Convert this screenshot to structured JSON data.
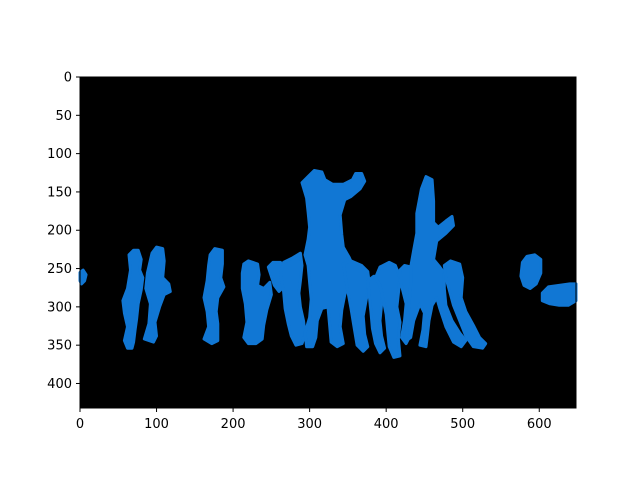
{
  "chart_data": {
    "type": "heatmap",
    "title": "",
    "xlabel": "",
    "ylabel": "",
    "xlim": [
      0,
      648
    ],
    "ylim": [
      432,
      0
    ],
    "y_axis_inverted": true,
    "xticks": [
      0,
      100,
      200,
      300,
      400,
      500,
      600
    ],
    "yticks": [
      0,
      50,
      100,
      150,
      200,
      250,
      300,
      350,
      400
    ],
    "grid": false,
    "legend": "none",
    "colors": {
      "background": "#000000",
      "mask": "#1177d4"
    },
    "mask_regions": [
      {
        "name": "edge-left",
        "points": [
          [
            0,
            255
          ],
          [
            4,
            252
          ],
          [
            8,
            258
          ],
          [
            6,
            266
          ],
          [
            2,
            270
          ],
          [
            0,
            266
          ]
        ]
      },
      {
        "name": "dancer-1",
        "points": [
          [
            64,
            232
          ],
          [
            70,
            226
          ],
          [
            76,
            226
          ],
          [
            80,
            238
          ],
          [
            78,
            252
          ],
          [
            82,
            262
          ],
          [
            80,
            278
          ],
          [
            76,
            296
          ],
          [
            74,
            316
          ],
          [
            72,
            330
          ],
          [
            70,
            346
          ],
          [
            68,
            354
          ],
          [
            62,
            354
          ],
          [
            58,
            344
          ],
          [
            62,
            326
          ],
          [
            58,
            308
          ],
          [
            56,
            292
          ],
          [
            62,
            276
          ],
          [
            66,
            252
          ]
        ]
      },
      {
        "name": "dancer-2",
        "points": [
          [
            94,
            230
          ],
          [
            100,
            222
          ],
          [
            108,
            224
          ],
          [
            110,
            240
          ],
          [
            108,
            262
          ],
          [
            116,
            270
          ],
          [
            118,
            280
          ],
          [
            110,
            284
          ],
          [
            104,
            300
          ],
          [
            98,
            320
          ],
          [
            100,
            338
          ],
          [
            96,
            346
          ],
          [
            84,
            342
          ],
          [
            90,
            322
          ],
          [
            92,
            296
          ],
          [
            86,
            276
          ],
          [
            88,
            256
          ]
        ]
      },
      {
        "name": "dancer-3",
        "points": [
          [
            170,
            232
          ],
          [
            176,
            224
          ],
          [
            186,
            226
          ],
          [
            186,
            244
          ],
          [
            184,
            262
          ],
          [
            188,
            274
          ],
          [
            180,
            288
          ],
          [
            178,
            306
          ],
          [
            180,
            322
          ],
          [
            180,
            344
          ],
          [
            172,
            348
          ],
          [
            162,
            342
          ],
          [
            168,
            326
          ],
          [
            166,
            306
          ],
          [
            162,
            288
          ],
          [
            166,
            266
          ],
          [
            168,
            246
          ]
        ]
      },
      {
        "name": "dancer-4",
        "points": [
          [
            214,
            244
          ],
          [
            220,
            240
          ],
          [
            232,
            244
          ],
          [
            234,
            258
          ],
          [
            232,
            272
          ],
          [
            240,
            276
          ],
          [
            248,
            268
          ],
          [
            250,
            284
          ],
          [
            244,
            304
          ],
          [
            240,
            324
          ],
          [
            238,
            342
          ],
          [
            230,
            348
          ],
          [
            220,
            348
          ],
          [
            214,
            340
          ],
          [
            218,
            320
          ],
          [
            216,
            296
          ],
          [
            212,
            276
          ],
          [
            212,
            256
          ]
        ]
      },
      {
        "name": "dancer-5",
        "points": [
          [
            246,
            248
          ],
          [
            252,
            242
          ],
          [
            262,
            242
          ],
          [
            266,
            256
          ],
          [
            268,
            272
          ],
          [
            260,
            280
          ],
          [
            254,
            272
          ]
        ]
      },
      {
        "name": "dancer-6",
        "points": [
          [
            266,
            242
          ],
          [
            278,
            236
          ],
          [
            288,
            230
          ],
          [
            290,
            246
          ],
          [
            288,
            266
          ],
          [
            286,
            282
          ],
          [
            288,
            300
          ],
          [
            292,
            318
          ],
          [
            294,
            336
          ],
          [
            290,
            348
          ],
          [
            282,
            350
          ],
          [
            276,
            338
          ],
          [
            272,
            322
          ],
          [
            268,
            302
          ],
          [
            266,
            280
          ],
          [
            262,
            258
          ]
        ]
      },
      {
        "name": "dancer-7",
        "points": [
          [
            290,
            138
          ],
          [
            298,
            130
          ],
          [
            306,
            122
          ],
          [
            316,
            124
          ],
          [
            320,
            134
          ],
          [
            330,
            140
          ],
          [
            344,
            140
          ],
          [
            356,
            134
          ],
          [
            360,
            126
          ],
          [
            368,
            126
          ],
          [
            372,
            136
          ],
          [
            366,
            146
          ],
          [
            354,
            156
          ],
          [
            346,
            160
          ],
          [
            340,
            180
          ],
          [
            342,
            206
          ],
          [
            344,
            222
          ],
          [
            352,
            236
          ],
          [
            358,
            250
          ],
          [
            352,
            266
          ],
          [
            346,
            284
          ],
          [
            342,
            304
          ],
          [
            340,
            326
          ],
          [
            344,
            348
          ],
          [
            336,
            352
          ],
          [
            328,
            346
          ],
          [
            326,
            322
          ],
          [
            324,
            300
          ],
          [
            316,
            302
          ],
          [
            310,
            318
          ],
          [
            308,
            340
          ],
          [
            304,
            352
          ],
          [
            296,
            352
          ],
          [
            294,
            334
          ],
          [
            300,
            314
          ],
          [
            302,
            290
          ],
          [
            300,
            268
          ],
          [
            298,
            246
          ],
          [
            294,
            232
          ],
          [
            298,
            212
          ],
          [
            300,
            196
          ],
          [
            298,
            176
          ],
          [
            296,
            158
          ]
        ]
      },
      {
        "name": "dancer-8",
        "points": [
          [
            344,
            244
          ],
          [
            354,
            240
          ],
          [
            368,
            246
          ],
          [
            376,
            254
          ],
          [
            378,
            270
          ],
          [
            374,
            290
          ],
          [
            370,
            312
          ],
          [
            372,
            336
          ],
          [
            376,
            352
          ],
          [
            370,
            358
          ],
          [
            362,
            350
          ],
          [
            358,
            326
          ],
          [
            354,
            302
          ],
          [
            350,
            280
          ]
        ]
      },
      {
        "name": "dancer-9",
        "points": [
          [
            376,
            266
          ],
          [
            384,
            260
          ],
          [
            392,
            262
          ],
          [
            396,
            276
          ],
          [
            394,
            296
          ],
          [
            392,
            318
          ],
          [
            394,
            338
          ],
          [
            398,
            354
          ],
          [
            392,
            360
          ],
          [
            386,
            348
          ],
          [
            382,
            328
          ],
          [
            380,
            306
          ]
        ]
      },
      {
        "name": "dancer-10",
        "points": [
          [
            386,
            262
          ],
          [
            392,
            248
          ],
          [
            404,
            242
          ],
          [
            412,
            246
          ],
          [
            418,
            262
          ],
          [
            416,
            282
          ],
          [
            414,
            300
          ],
          [
            418,
            320
          ],
          [
            416,
            342
          ],
          [
            418,
            364
          ],
          [
            410,
            366
          ],
          [
            404,
            352
          ],
          [
            402,
            332
          ],
          [
            400,
            310
          ],
          [
            396,
            290
          ],
          [
            392,
            272
          ]
        ]
      },
      {
        "name": "dancer-11",
        "points": [
          [
            418,
            252
          ],
          [
            424,
            246
          ],
          [
            432,
            248
          ],
          [
            436,
            266
          ],
          [
            436,
            292
          ],
          [
            434,
            316
          ],
          [
            432,
            336
          ],
          [
            426,
            348
          ],
          [
            420,
            340
          ],
          [
            424,
            318
          ],
          [
            426,
            296
          ],
          [
            420,
            272
          ]
        ]
      },
      {
        "name": "dancer-12",
        "points": [
          [
            440,
            178
          ],
          [
            446,
            146
          ],
          [
            452,
            130
          ],
          [
            460,
            134
          ],
          [
            462,
            162
          ],
          [
            462,
            190
          ],
          [
            468,
            196
          ],
          [
            478,
            188
          ],
          [
            486,
            182
          ],
          [
            488,
            194
          ],
          [
            478,
            204
          ],
          [
            466,
            214
          ],
          [
            462,
            238
          ],
          [
            470,
            248
          ],
          [
            476,
            256
          ],
          [
            476,
            276
          ],
          [
            478,
            298
          ],
          [
            486,
            318
          ],
          [
            496,
            334
          ],
          [
            504,
            344
          ],
          [
            498,
            352
          ],
          [
            488,
            346
          ],
          [
            478,
            326
          ],
          [
            470,
            302
          ],
          [
            466,
            288
          ],
          [
            460,
            298
          ],
          [
            456,
            318
          ],
          [
            454,
            336
          ],
          [
            452,
            352
          ],
          [
            444,
            350
          ],
          [
            448,
            330
          ],
          [
            450,
            308
          ],
          [
            444,
            296
          ],
          [
            436,
            318
          ],
          [
            432,
            340
          ],
          [
            426,
            344
          ],
          [
            428,
            318
          ],
          [
            430,
            296
          ],
          [
            432,
            270
          ],
          [
            432,
            248
          ],
          [
            436,
            226
          ],
          [
            440,
            204
          ]
        ]
      },
      {
        "name": "dancer-13",
        "points": [
          [
            476,
            246
          ],
          [
            484,
            240
          ],
          [
            496,
            244
          ],
          [
            500,
            262
          ],
          [
            498,
            288
          ],
          [
            504,
            306
          ],
          [
            514,
            324
          ],
          [
            522,
            340
          ],
          [
            530,
            348
          ],
          [
            526,
            354
          ],
          [
            514,
            352
          ],
          [
            504,
            338
          ],
          [
            496,
            318
          ],
          [
            488,
            298
          ],
          [
            482,
            276
          ],
          [
            478,
            262
          ]
        ]
      },
      {
        "name": "dancer-14",
        "points": [
          [
            578,
            242
          ],
          [
            584,
            234
          ],
          [
            594,
            232
          ],
          [
            602,
            238
          ],
          [
            602,
            256
          ],
          [
            596,
            270
          ],
          [
            588,
            276
          ],
          [
            580,
            272
          ],
          [
            576,
            260
          ]
        ]
      },
      {
        "name": "edge-right",
        "points": [
          [
            604,
            282
          ],
          [
            612,
            274
          ],
          [
            626,
            272
          ],
          [
            640,
            270
          ],
          [
            648,
            270
          ],
          [
            648,
            292
          ],
          [
            638,
            298
          ],
          [
            626,
            298
          ],
          [
            614,
            296
          ],
          [
            604,
            292
          ]
        ]
      }
    ]
  }
}
